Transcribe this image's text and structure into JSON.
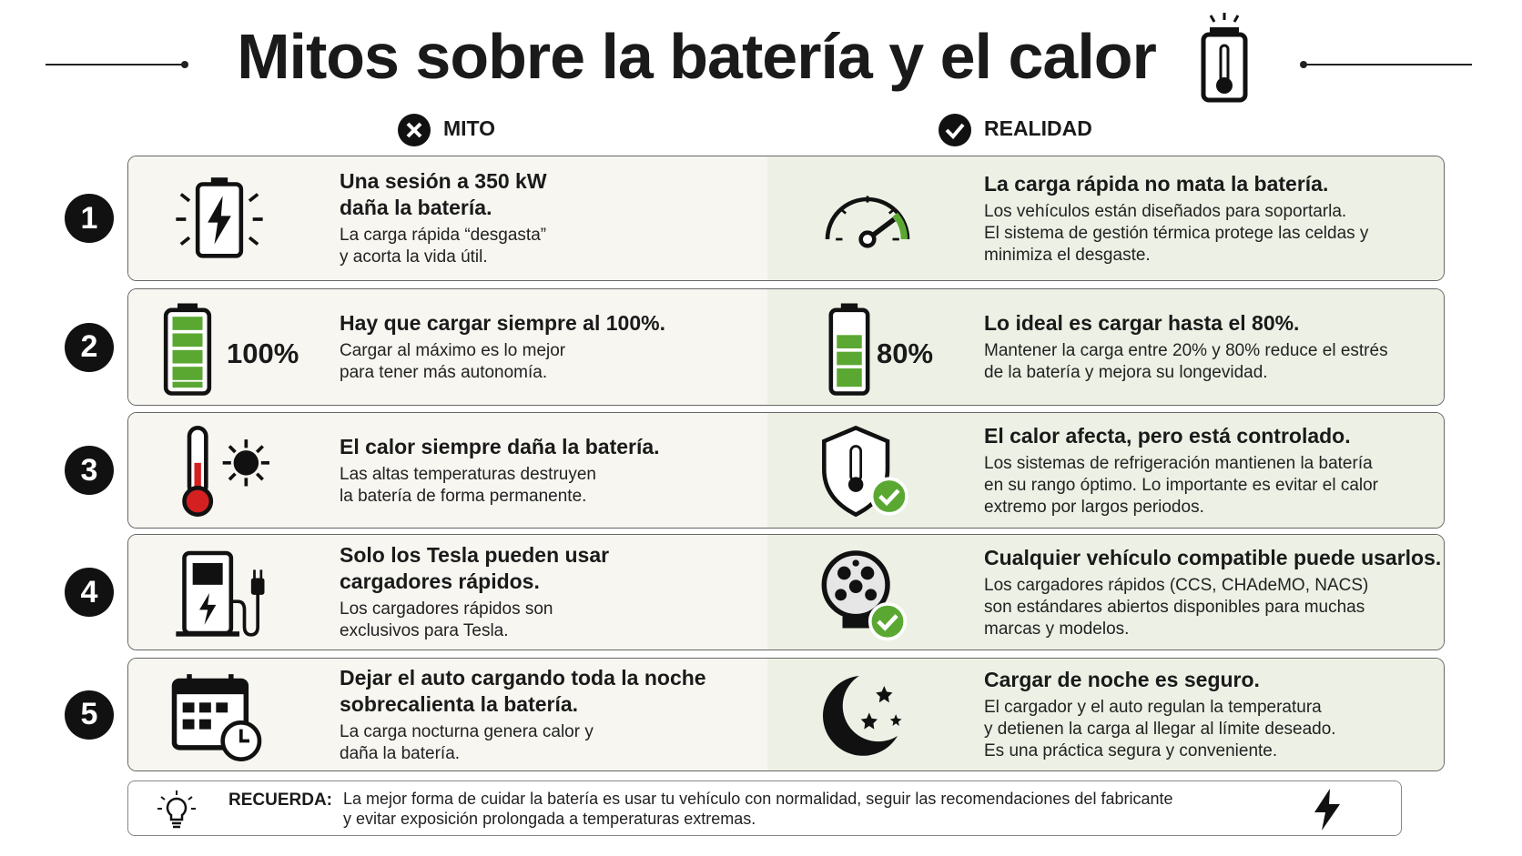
{
  "header": {
    "title": "Mitos sobre la batería y el calor",
    "myth_label": "MITO",
    "reality_label": "REALIDAD"
  },
  "rows": [
    {
      "number": "1",
      "myth": {
        "title": [
          "Una sesión a 350 kW",
          "daña la batería."
        ],
        "text": [
          "La carga rápida “desgasta”",
          "y acorta la vida útil."
        ]
      },
      "reality": {
        "title": [
          "La carga rápida no mata la batería."
        ],
        "text": [
          "Los vehículos están diseñados para soportarla.",
          "El sistema de gestión térmica protege las celdas y",
          "minimiza el desgaste."
        ]
      }
    },
    {
      "number": "2",
      "myth": {
        "title": [
          "Hay que cargar siempre al 100%."
        ],
        "text": [
          "Cargar al máximo es lo mejor",
          "para tener más autonomía."
        ],
        "figure": "100%"
      },
      "reality": {
        "title": [
          "Lo ideal es cargar hasta el 80%."
        ],
        "text": [
          "Mantener la carga entre 20% y 80% reduce el estrés",
          "de la batería y mejora su longevidad."
        ],
        "figure": "80%"
      }
    },
    {
      "number": "3",
      "myth": {
        "title": [
          "El calor siempre daña la batería."
        ],
        "text": [
          "Las altas temperaturas destruyen",
          "la batería de forma permanente."
        ]
      },
      "reality": {
        "title": [
          "El calor afecta, pero está controlado."
        ],
        "text": [
          "Los sistemas de refrigeración mantienen la batería",
          "en su rango óptimo. Lo importante es evitar el calor",
          "extremo por largos periodos."
        ]
      }
    },
    {
      "number": "4",
      "myth": {
        "title": [
          "Solo los Tesla pueden usar",
          "cargadores rápidos."
        ],
        "text": [
          "Los cargadores rápidos son",
          "exclusivos para Tesla."
        ]
      },
      "reality": {
        "title": [
          "Cualquier vehículo compatible puede usarlos."
        ],
        "text": [
          "Los cargadores rápidos (CCS, CHAdeMO, NACS)",
          "son estándares abiertos disponibles para muchas",
          "marcas y modelos."
        ]
      }
    },
    {
      "number": "5",
      "myth": {
        "title": [
          "Dejar el auto cargando toda la noche",
          "sobrecalienta la batería."
        ],
        "text": [
          "La carga nocturna genera calor y",
          "daña la batería."
        ]
      },
      "reality": {
        "title": [
          "Cargar de noche es seguro."
        ],
        "text": [
          "El cargador y el auto regulan la temperatura",
          "y detienen la carga al llegar al límite deseado.",
          "Es una práctica segura y conveniente."
        ]
      }
    }
  ],
  "footer": {
    "label": "RECUERDA:",
    "text": [
      "La mejor forma de cuidar la batería es usar tu vehículo con normalidad, seguir las recomendaciones del fabricante",
      "y evitar exposición prolongada a temperaturas extremas."
    ]
  }
}
